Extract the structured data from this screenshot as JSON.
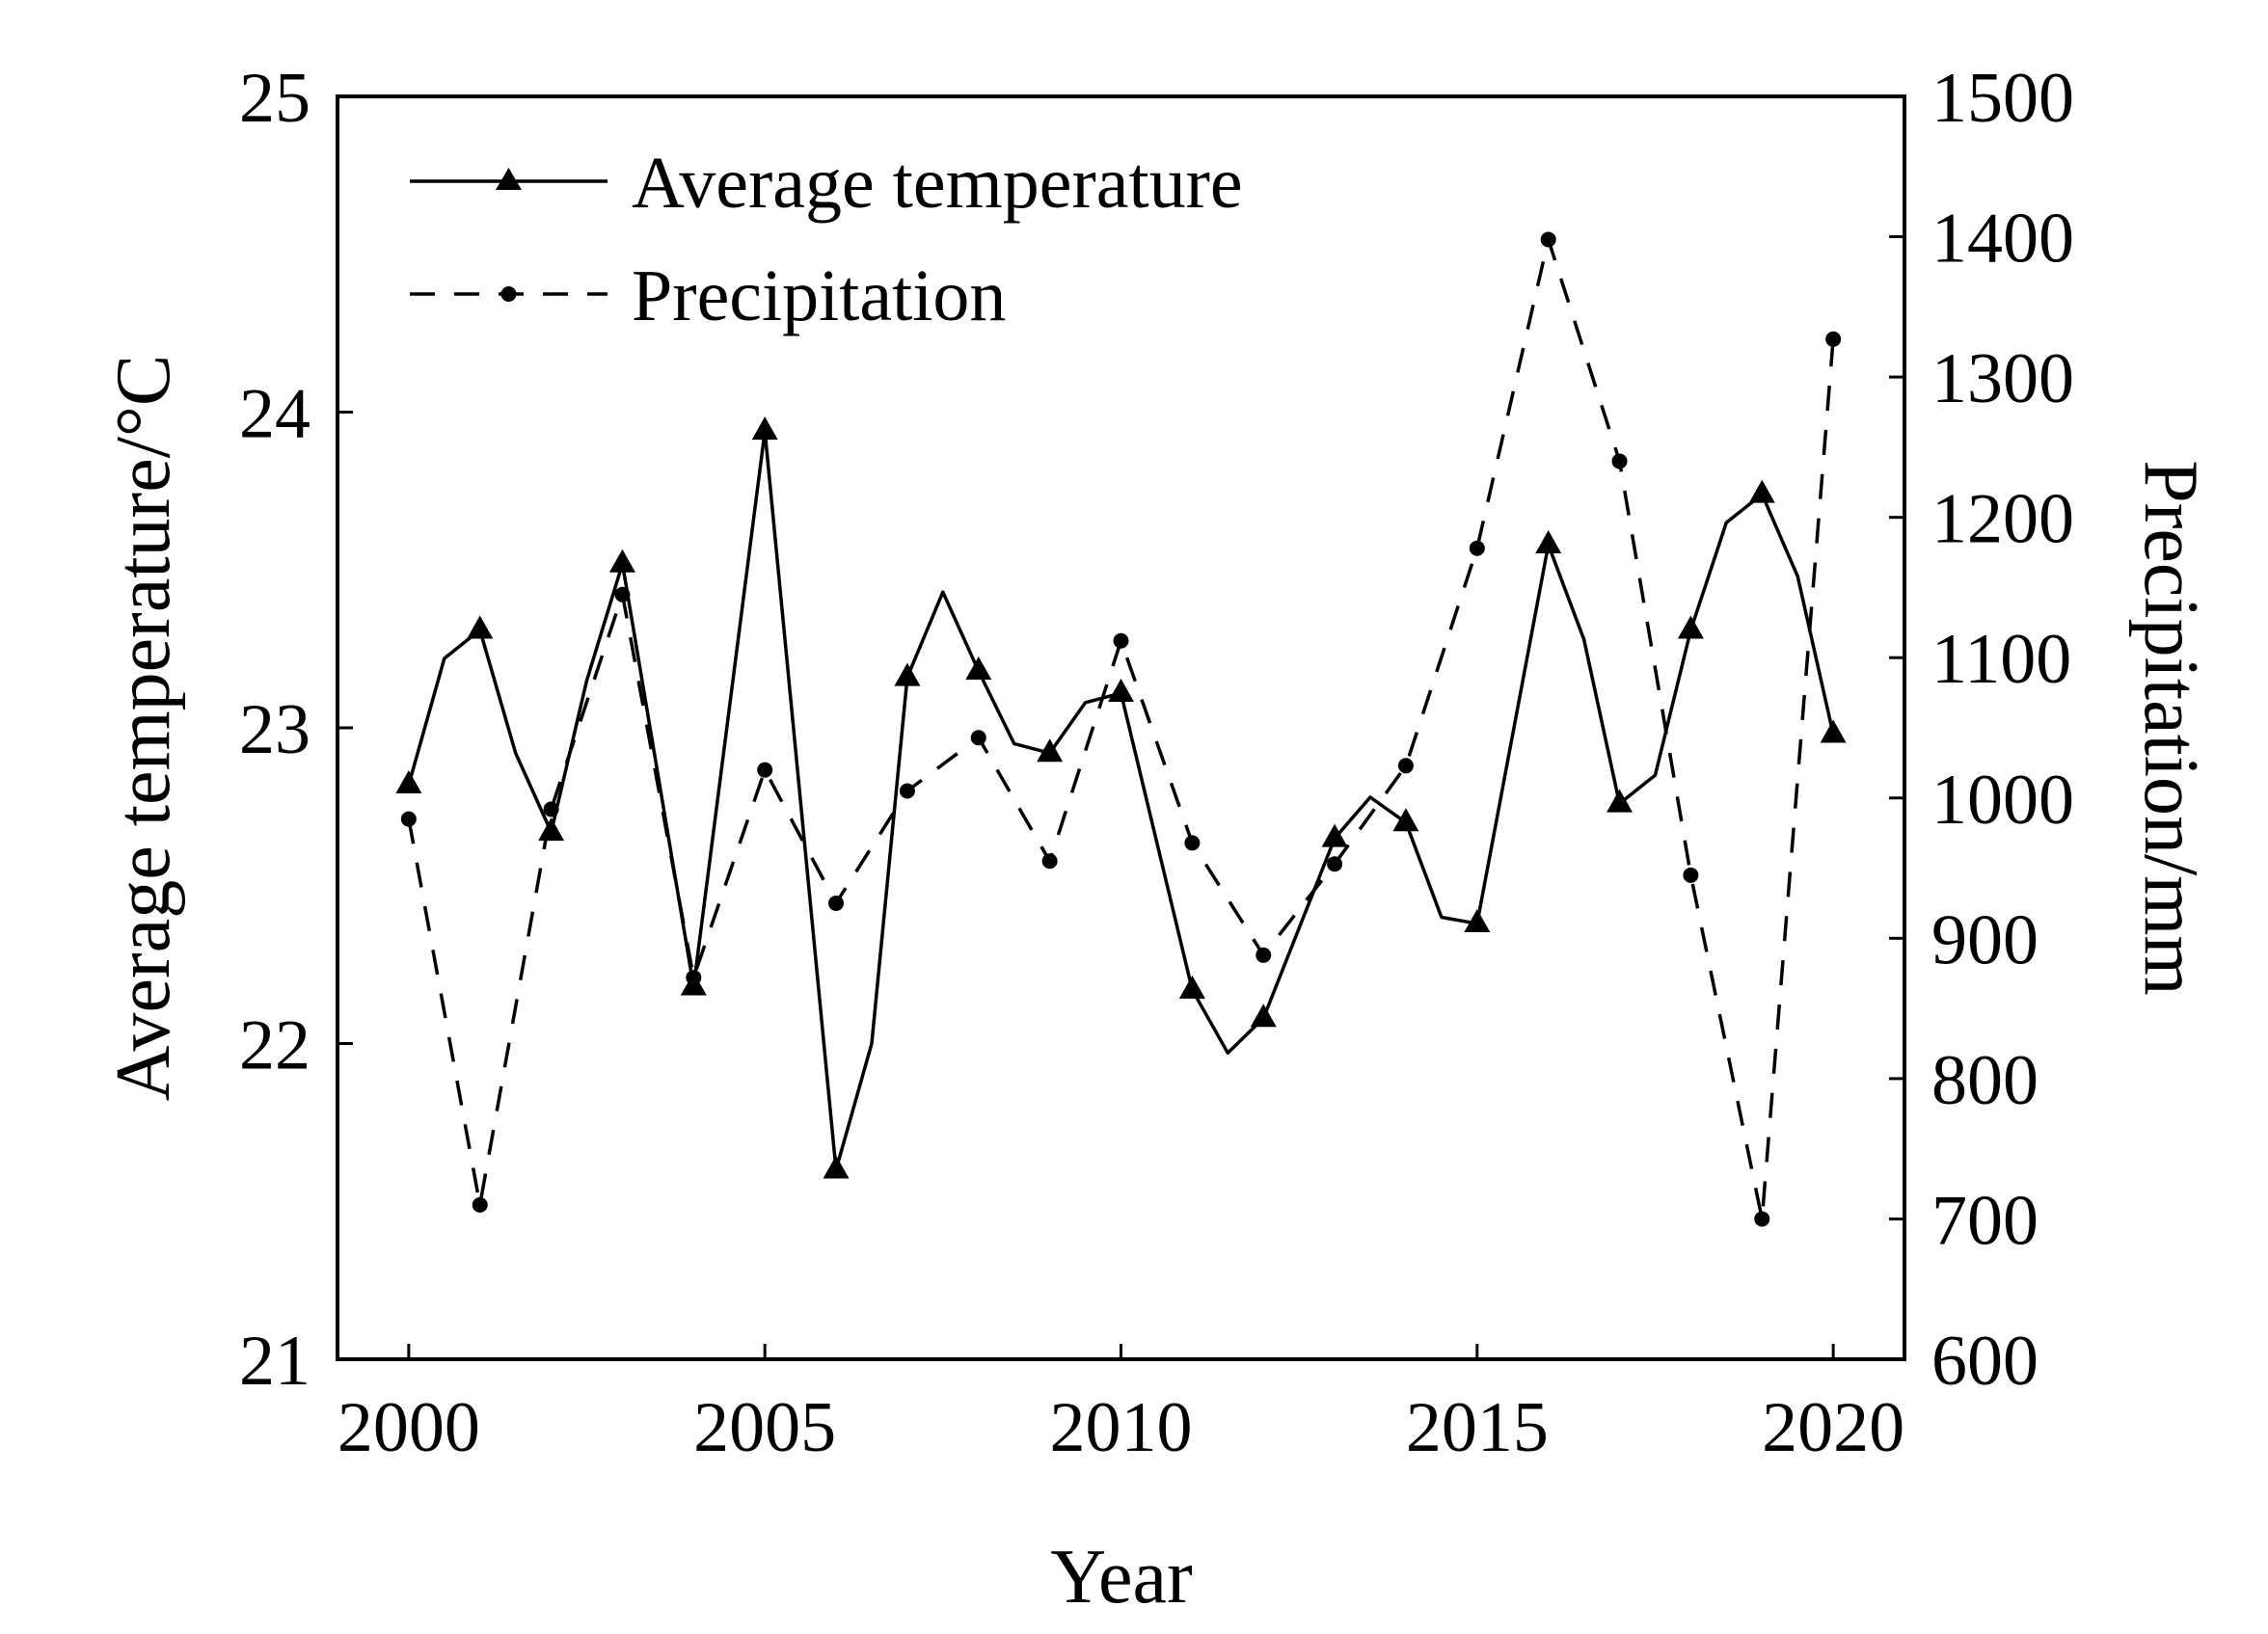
{
  "chart_data": {
    "type": "line",
    "xlabel": "Year",
    "ylabel_left": "Average temperature/°C",
    "ylabel_right": "Precipitation/mm",
    "xlim": [
      1999,
      2021
    ],
    "ylim_left": [
      21,
      25
    ],
    "ylim_right": [
      600,
      1500
    ],
    "xticks": [
      "2000",
      "2005",
      "2010",
      "2015",
      "2020"
    ],
    "xtick_values": [
      2000,
      2005,
      2010,
      2015,
      2020
    ],
    "yticks_left": [
      "21",
      "22",
      "23",
      "24",
      "25"
    ],
    "ytick_values_left": [
      21,
      22,
      23,
      24,
      25
    ],
    "yticks_right": [
      "600",
      "700",
      "800",
      "900",
      "1000",
      "1100",
      "1200",
      "1300",
      "1400",
      "1500"
    ],
    "ytick_values_right": [
      600,
      700,
      800,
      900,
      1000,
      1100,
      1200,
      1300,
      1400,
      1500
    ],
    "legend_position": "top-left",
    "series": [
      {
        "name": "Average temperature",
        "axis": "left",
        "style": "solid",
        "marker": "triangle",
        "points": [
          {
            "x": 2000,
            "y": 22.82,
            "marker": true
          },
          {
            "x": 2000.5,
            "y": 23.22,
            "marker": false
          },
          {
            "x": 2001,
            "y": 23.31,
            "marker": true
          },
          {
            "x": 2001.5,
            "y": 22.92,
            "marker": false
          },
          {
            "x": 2002,
            "y": 22.67,
            "marker": true
          },
          {
            "x": 2002.5,
            "y": 23.15,
            "marker": false
          },
          {
            "x": 2003,
            "y": 23.52,
            "marker": true
          },
          {
            "x": 2004,
            "y": 22.18,
            "marker": true
          },
          {
            "x": 2005,
            "y": 23.94,
            "marker": true
          },
          {
            "x": 2006,
            "y": 21.6,
            "marker": true
          },
          {
            "x": 2006.5,
            "y": 22.0,
            "marker": false
          },
          {
            "x": 2007,
            "y": 23.16,
            "marker": true
          },
          {
            "x": 2007.5,
            "y": 23.43,
            "marker": false
          },
          {
            "x": 2008,
            "y": 23.18,
            "marker": true
          },
          {
            "x": 2008.5,
            "y": 22.95,
            "marker": false
          },
          {
            "x": 2009,
            "y": 22.92,
            "marker": true
          },
          {
            "x": 2009.5,
            "y": 23.08,
            "marker": false
          },
          {
            "x": 2010,
            "y": 23.11,
            "marker": true
          },
          {
            "x": 2011,
            "y": 22.17,
            "marker": true
          },
          {
            "x": 2011.5,
            "y": 21.97,
            "marker": false
          },
          {
            "x": 2012,
            "y": 22.08,
            "marker": true
          },
          {
            "x": 2013,
            "y": 22.65,
            "marker": true
          },
          {
            "x": 2013.5,
            "y": 22.78,
            "marker": false
          },
          {
            "x": 2014,
            "y": 22.7,
            "marker": true
          },
          {
            "x": 2014.5,
            "y": 22.4,
            "marker": false
          },
          {
            "x": 2015,
            "y": 22.38,
            "marker": true
          },
          {
            "x": 2016,
            "y": 23.58,
            "marker": true
          },
          {
            "x": 2016.5,
            "y": 23.28,
            "marker": false
          },
          {
            "x": 2017,
            "y": 22.76,
            "marker": true
          },
          {
            "x": 2017.5,
            "y": 22.85,
            "marker": false
          },
          {
            "x": 2018,
            "y": 23.31,
            "marker": true
          },
          {
            "x": 2018.5,
            "y": 23.65,
            "marker": false
          },
          {
            "x": 2019,
            "y": 23.74,
            "marker": true
          },
          {
            "x": 2019.5,
            "y": 23.48,
            "marker": false
          },
          {
            "x": 2020,
            "y": 22.98,
            "marker": true
          }
        ]
      },
      {
        "name": "Precipitation",
        "axis": "right",
        "style": "dashed",
        "marker": "circle",
        "points": [
          {
            "x": 2000,
            "y": 985
          },
          {
            "x": 2001,
            "y": 710
          },
          {
            "x": 2002,
            "y": 992
          },
          {
            "x": 2003,
            "y": 1145
          },
          {
            "x": 2004,
            "y": 872
          },
          {
            "x": 2005,
            "y": 1020
          },
          {
            "x": 2006,
            "y": 925
          },
          {
            "x": 2007,
            "y": 1005
          },
          {
            "x": 2008,
            "y": 1043
          },
          {
            "x": 2009,
            "y": 955
          },
          {
            "x": 2010,
            "y": 1112
          },
          {
            "x": 2011,
            "y": 968
          },
          {
            "x": 2012,
            "y": 888
          },
          {
            "x": 2013,
            "y": 953
          },
          {
            "x": 2014,
            "y": 1023
          },
          {
            "x": 2015,
            "y": 1178
          },
          {
            "x": 2016,
            "y": 1398
          },
          {
            "x": 2017,
            "y": 1240
          },
          {
            "x": 2018,
            "y": 945
          },
          {
            "x": 2019,
            "y": 700
          },
          {
            "x": 2020,
            "y": 1327
          }
        ]
      }
    ]
  }
}
